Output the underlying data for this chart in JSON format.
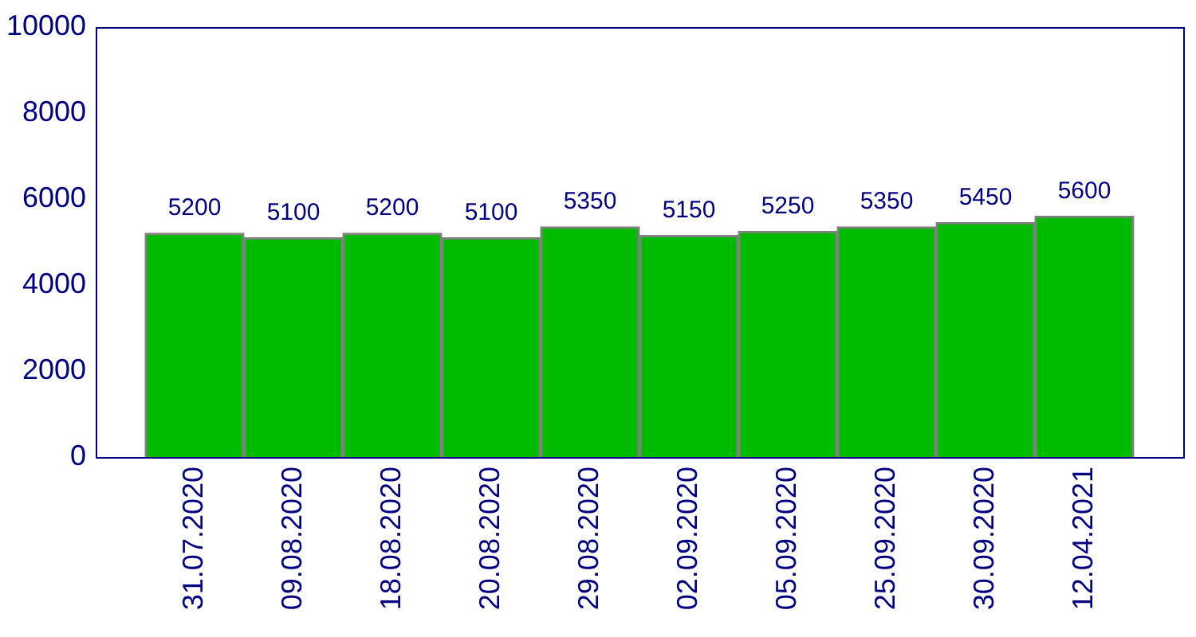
{
  "chart_data": {
    "type": "bar",
    "categories": [
      "31.07.2020",
      "09.08.2020",
      "18.08.2020",
      "20.08.2020",
      "29.08.2020",
      "02.09.2020",
      "05.09.2020",
      "25.09.2020",
      "30.09.2020",
      "12.04.2021"
    ],
    "values": [
      5200,
      5100,
      5200,
      5100,
      5350,
      5150,
      5250,
      5350,
      5450,
      5600
    ],
    "color": "#00bb00",
    "ylim": [
      0,
      10000
    ],
    "yticks": [
      0,
      2000,
      4000,
      6000,
      8000,
      10000
    ],
    "data_labels": true
  }
}
